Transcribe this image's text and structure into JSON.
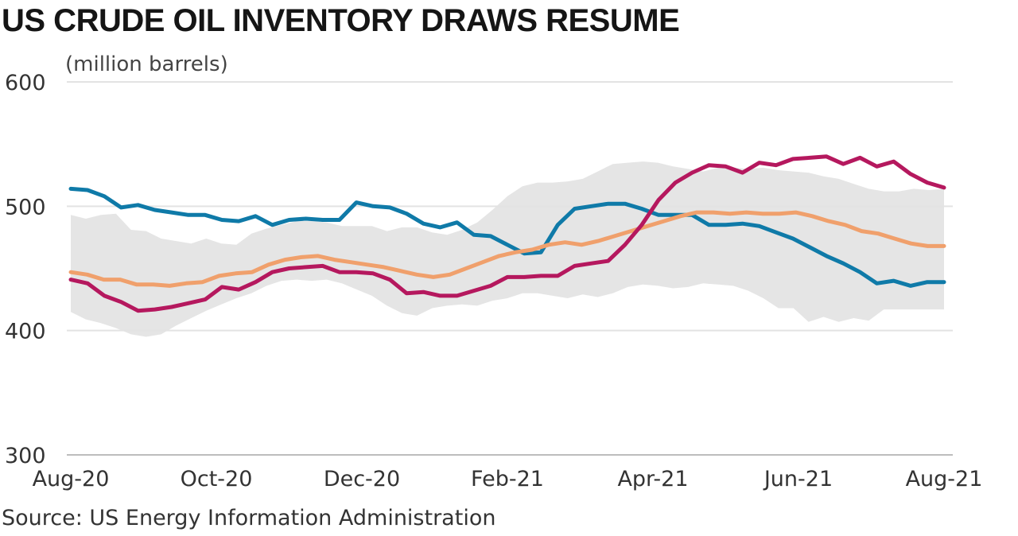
{
  "title": "US CRUDE OIL INVENTORY DRAWS RESUME",
  "source": "Source: US Energy Information Administration",
  "chart_data": {
    "type": "line",
    "title": "US CRUDE OIL INVENTORY DRAWS RESUME",
    "ylabel": "(million barrels)",
    "ylim": [
      300,
      600
    ],
    "yticks": [
      300,
      400,
      500,
      600
    ],
    "xticks": [
      "Aug-20",
      "Oct-20",
      "Dec-20",
      "Feb-21",
      "Apr-21",
      "Jun-21",
      "Aug-21"
    ],
    "grid": true,
    "legend": "none",
    "band": {
      "color": "#e5e5e5",
      "upper": [
        493,
        490,
        493,
        494,
        481,
        480,
        474,
        472,
        470,
        474,
        470,
        469,
        478,
        482,
        485,
        488,
        488,
        487,
        484,
        484,
        484,
        480,
        483,
        483,
        479,
        477,
        481,
        487,
        497,
        508,
        516,
        519,
        519,
        520,
        522,
        528,
        534,
        535,
        536,
        535,
        532,
        530,
        528,
        531,
        531,
        530,
        531,
        529,
        528,
        527,
        524,
        522,
        518,
        514,
        512,
        512,
        514,
        513,
        514
      ],
      "lower": [
        415,
        409,
        406,
        402,
        397,
        395,
        397,
        404,
        410,
        416,
        421,
        426,
        430,
        436,
        440,
        441,
        440,
        441,
        438,
        433,
        428,
        420,
        414,
        412,
        418,
        420,
        421,
        420,
        424,
        426,
        430,
        430,
        428,
        426,
        429,
        427,
        430,
        435,
        437,
        436,
        434,
        435,
        438,
        437,
        436,
        432,
        426,
        418,
        418,
        407,
        411,
        407,
        410,
        408,
        417,
        417,
        417,
        417,
        417
      ]
    },
    "series": [
      {
        "color": "#0f7aa8",
        "values": [
          514,
          513,
          508,
          499,
          501,
          497,
          495,
          493,
          493,
          489,
          488,
          492,
          485,
          489,
          490,
          489,
          489,
          503,
          500,
          499,
          494,
          486,
          483,
          487,
          477,
          476,
          469,
          462,
          463,
          485,
          498,
          500,
          502,
          502,
          498,
          493,
          493,
          493,
          485,
          485,
          486,
          484,
          479,
          474,
          467,
          460,
          454,
          447,
          438,
          440,
          436,
          439,
          439
        ]
      },
      {
        "color": "#f0a06c",
        "values": [
          447,
          445,
          441,
          441,
          437,
          437,
          436,
          438,
          439,
          444,
          446,
          447,
          453,
          457,
          459,
          460,
          457,
          455,
          453,
          451,
          448,
          445,
          443,
          445,
          450,
          455,
          460,
          463,
          465,
          469,
          471,
          469,
          472,
          476,
          480,
          484,
          488,
          492,
          495,
          495,
          494,
          495,
          494,
          494,
          495,
          492,
          488,
          485,
          480,
          478,
          474,
          470,
          468,
          468
        ]
      },
      {
        "color": "#b5185e",
        "values": [
          441,
          438,
          428,
          423,
          416,
          417,
          419,
          422,
          425,
          435,
          433,
          439,
          447,
          450,
          451,
          452,
          447,
          447,
          446,
          441,
          430,
          431,
          428,
          428,
          432,
          436,
          443,
          443,
          444,
          444,
          452,
          454,
          456,
          469,
          485,
          505,
          519,
          527,
          533,
          532,
          527,
          535,
          533,
          538,
          539,
          540,
          534,
          539,
          532,
          536,
          526,
          519,
          515
        ]
      }
    ]
  }
}
